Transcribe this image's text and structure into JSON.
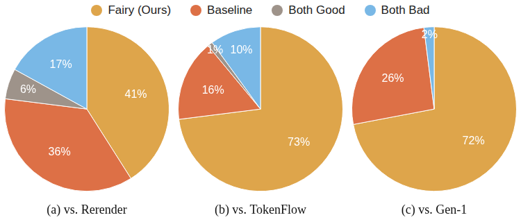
{
  "chart_data": [
    {
      "type": "pie",
      "title": "(a) vs. Rerender",
      "categories": [
        "Fairy (Ours)",
        "Baseline",
        "Both Good",
        "Both Bad"
      ],
      "values": [
        41,
        36,
        6,
        17
      ],
      "value_labels": [
        "41%",
        "36%",
        "6%",
        "17%"
      ],
      "colors": [
        "#dea54b",
        "#dd7046",
        "#9e938a",
        "#79b8e6"
      ],
      "data_labels": true,
      "legend": "top"
    },
    {
      "type": "pie",
      "title": "(b) vs. TokenFlow",
      "categories": [
        "Fairy (Ours)",
        "Baseline",
        "Both Good",
        "Both Bad"
      ],
      "values": [
        73,
        16,
        1,
        10
      ],
      "value_labels": [
        "73%",
        "16%",
        "1%",
        "10%"
      ],
      "colors": [
        "#dea54b",
        "#dd7046",
        "#9e938a",
        "#79b8e6"
      ],
      "data_labels": true,
      "legend": "top"
    },
    {
      "type": "pie",
      "title": "(c) vs. Gen-1",
      "categories": [
        "Fairy (Ours)",
        "Baseline",
        "Both Good",
        "Both Bad"
      ],
      "values": [
        72,
        26,
        0,
        2
      ],
      "value_labels": [
        "72%",
        "26%",
        null,
        "2%"
      ],
      "colors": [
        "#dea54b",
        "#dd7046",
        "#9e938a",
        "#79b8e6"
      ],
      "data_labels": true,
      "legend": "top"
    }
  ]
}
